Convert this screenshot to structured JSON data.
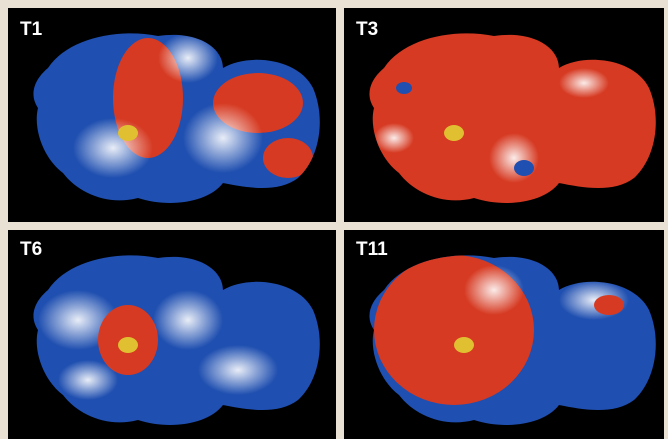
{
  "panels": [
    {
      "label": "T1"
    },
    {
      "label": "T3"
    },
    {
      "label": "T6"
    },
    {
      "label": "T11"
    }
  ]
}
